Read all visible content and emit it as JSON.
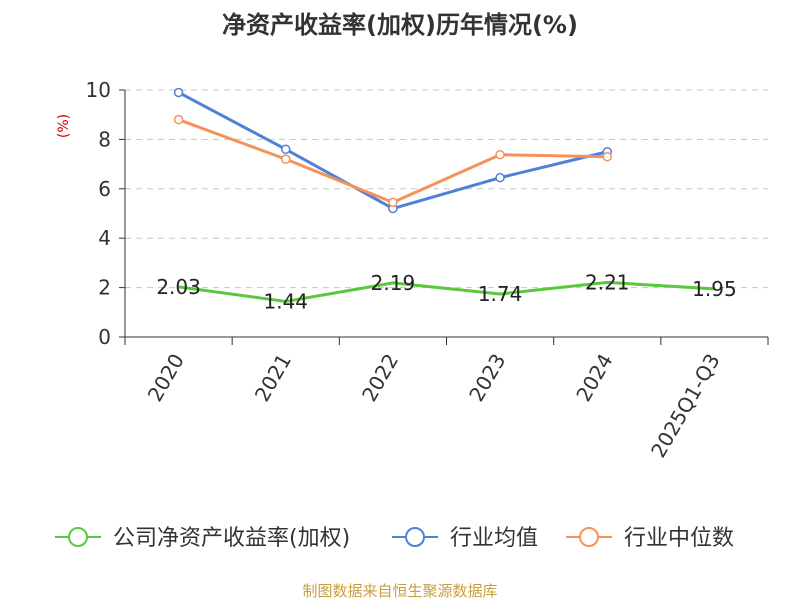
{
  "chart_data": {
    "type": "line",
    "title": "净资产收益率(加权)历年情况(%)",
    "ylabel": "(%)",
    "xlabel": "",
    "categories": [
      "2020",
      "2021",
      "2022",
      "2023",
      "2024",
      "2025Q1-Q3"
    ],
    "yticks": [
      0,
      2,
      4,
      6,
      8,
      10
    ],
    "ylim": [
      0,
      10
    ],
    "grid": "horizontal-dashed",
    "legend_position": "bottom",
    "series": [
      {
        "name": "公司净资产收益率(加权)",
        "color": "#5ac83c",
        "values": [
          2.03,
          1.44,
          2.19,
          1.74,
          2.21,
          1.95
        ],
        "labels": [
          "2.03",
          "1.44",
          "2.19",
          "1.74",
          "2.21",
          "1.95"
        ]
      },
      {
        "name": "行业均值",
        "color": "#4f81d9",
        "values": [
          9.9,
          7.6,
          5.2,
          6.45,
          7.5,
          null
        ]
      },
      {
        "name": "行业中位数",
        "color": "#f5925a",
        "values": [
          8.8,
          7.2,
          5.45,
          7.38,
          7.3,
          null
        ]
      }
    ]
  },
  "source": "制图数据来自恒生聚源数据库"
}
